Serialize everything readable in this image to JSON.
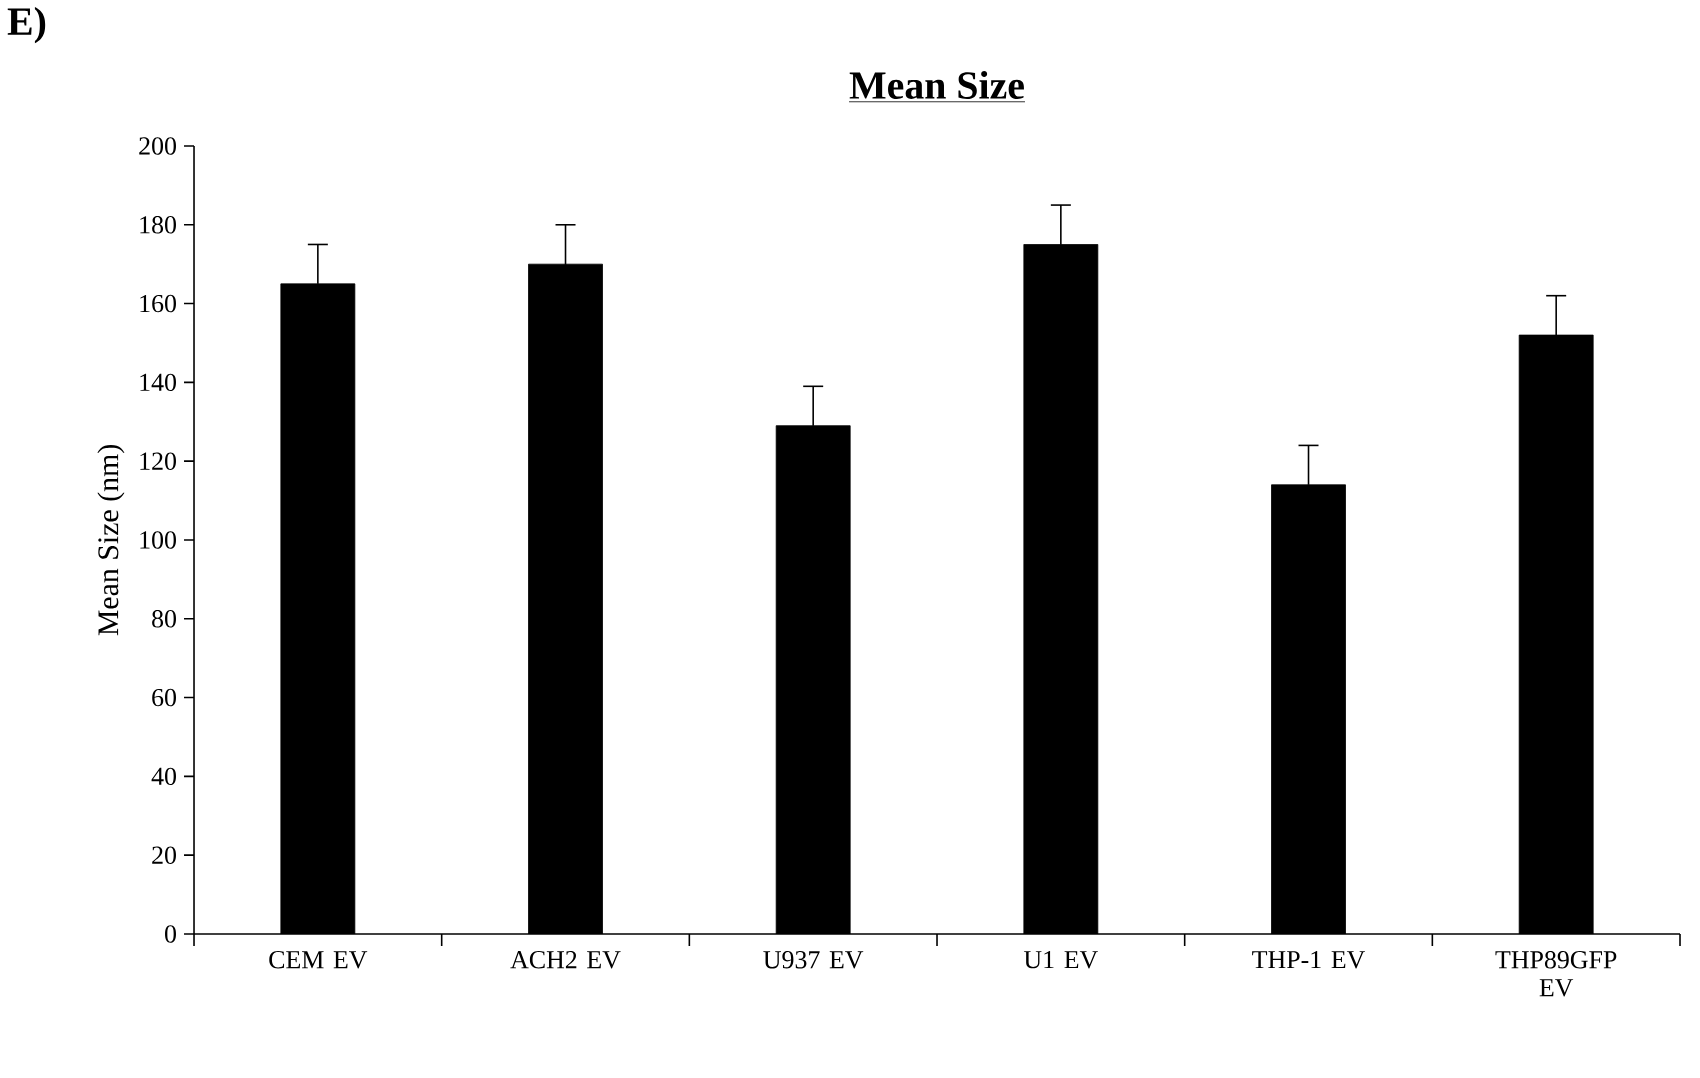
{
  "chart_data": {
    "type": "bar",
    "title": "**Mean Size**",
    "ylabel": "Mean Size (nm)",
    "categories": [
      "CEM EV",
      "ACH2 EV",
      "U937 EV",
      "U1 EV",
      "THP-1 EV",
      "THP89GFP EV"
    ],
    "values": [
      165,
      170,
      129,
      175,
      114,
      152
    ],
    "errors": [
      10,
      10,
      10,
      10,
      10,
      10
    ],
    "color": "#000000",
    "ylim": [
      0,
      200
    ],
    "yticks": [
      0,
      20,
      40,
      60,
      80,
      100,
      120,
      140,
      160,
      180,
      200
    ],
    "grid": false,
    "annotations": [
      "E)"
    ]
  }
}
